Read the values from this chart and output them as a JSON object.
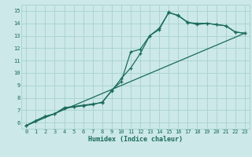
{
  "title": "",
  "xlabel": "Humidex (Indice chaleur)",
  "bg_color": "#cce8e8",
  "grid_color": "#aad4d4",
  "line_color": "#1a6b5a",
  "xlim": [
    -0.5,
    23.5
  ],
  "ylim": [
    5.5,
    15.5
  ],
  "xticks": [
    0,
    1,
    2,
    3,
    4,
    5,
    6,
    7,
    8,
    9,
    10,
    11,
    12,
    13,
    14,
    15,
    16,
    17,
    18,
    19,
    20,
    21,
    22,
    23
  ],
  "yticks": [
    6,
    7,
    8,
    9,
    10,
    11,
    12,
    13,
    14,
    15
  ],
  "line1_x": [
    0,
    1,
    2,
    3,
    4,
    5,
    6,
    7,
    8,
    9,
    10,
    11,
    12,
    13,
    14,
    15,
    16,
    17,
    18,
    19,
    20,
    21,
    22,
    23
  ],
  "line1_y": [
    5.75,
    6.15,
    6.5,
    6.7,
    7.15,
    7.25,
    7.35,
    7.45,
    7.65,
    8.55,
    9.55,
    10.4,
    11.55,
    13.0,
    13.6,
    14.85,
    14.65,
    14.05,
    14.0,
    14.0,
    13.9,
    13.8,
    13.3,
    13.2
  ],
  "line2_x": [
    0,
    1,
    2,
    3,
    4,
    5,
    6,
    7,
    8,
    9,
    10,
    11,
    12,
    13,
    14,
    15,
    16,
    17,
    18,
    19,
    20,
    21,
    22,
    23
  ],
  "line2_y": [
    5.75,
    6.15,
    6.5,
    6.7,
    7.2,
    7.3,
    7.4,
    7.5,
    7.6,
    8.6,
    9.3,
    11.7,
    11.9,
    13.0,
    13.5,
    14.9,
    14.6,
    14.1,
    13.9,
    14.0,
    13.9,
    13.8,
    13.3,
    13.2
  ],
  "line3_x": [
    0,
    23
  ],
  "line3_y": [
    5.75,
    13.2
  ]
}
